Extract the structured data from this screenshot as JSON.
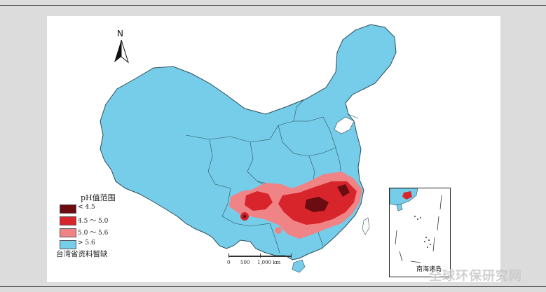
{
  "north_label": "N",
  "legend": {
    "title": "pH值范围",
    "items": [
      {
        "label": "< 4.5",
        "color": "#6a0c10"
      },
      {
        "label": "4.5 ～ 5.0",
        "color": "#d8242b"
      },
      {
        "label": "5.0 ～ 5.6",
        "color": "#f08386"
      },
      {
        "label": "> 5.6",
        "color": "#76cde9"
      }
    ]
  },
  "taiwan_note": "台湾省资料暂缺",
  "scale": {
    "labels": [
      "0",
      "500",
      "1,000 km"
    ]
  },
  "inset_label": "南海诸岛",
  "watermark": "全球环保研究网",
  "colors": {
    "land": "#76cde9",
    "boundary": "#2b4d5a"
  }
}
